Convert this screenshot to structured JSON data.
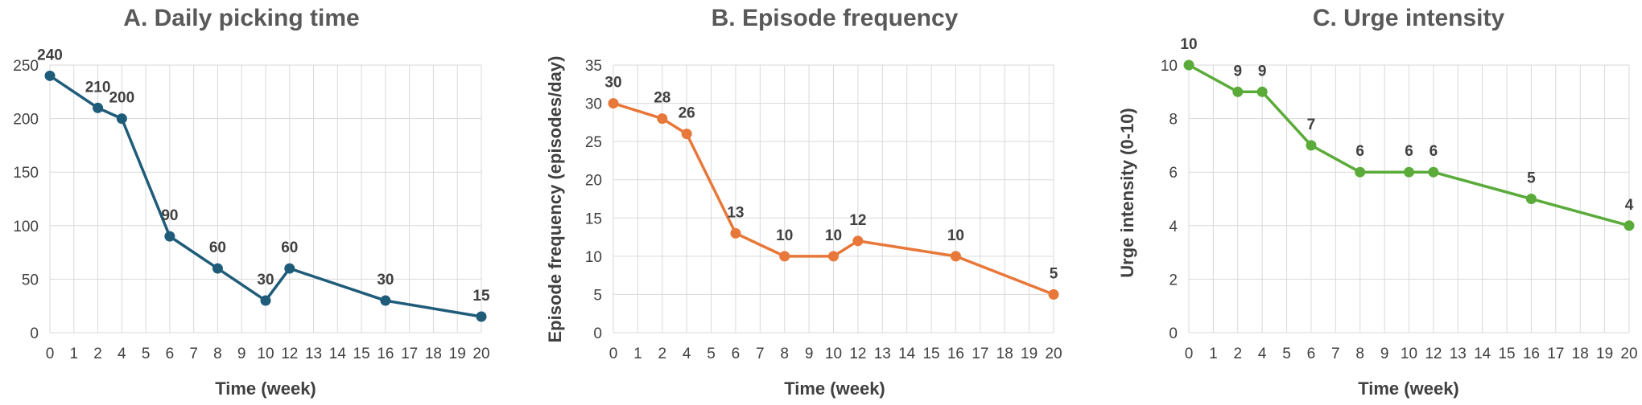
{
  "chart_data": [
    {
      "type": "line",
      "title": "A. Daily picking time",
      "xlabel": "Time (week)",
      "ylabel": "",
      "x_ticks": [
        "0",
        "1",
        "2",
        "4",
        "5",
        "6",
        "7",
        "8",
        "9",
        "10",
        "12",
        "13",
        "14",
        "15",
        "16",
        "17",
        "18",
        "19",
        "20"
      ],
      "ylim": [
        0,
        250
      ],
      "y_ticks": [
        "0",
        "50",
        "100",
        "150",
        "200",
        "250"
      ],
      "grid": true,
      "color": "#1f5c7a",
      "series": [
        {
          "x": [
            "0",
            "2",
            "4",
            "6",
            "8",
            "10",
            "12",
            "16",
            "20"
          ],
          "values": [
            240,
            210,
            200,
            90,
            60,
            30,
            60,
            30,
            15
          ]
        }
      ],
      "data_labels": [
        "240",
        "210",
        "200",
        "90",
        "60",
        "30",
        "60",
        "30",
        "15"
      ]
    },
    {
      "type": "line",
      "title": "B. Episode frequency",
      "xlabel": "Time (week)",
      "ylabel": "Episode frequency (episodes/day)",
      "x_ticks": [
        "0",
        "1",
        "2",
        "4",
        "5",
        "6",
        "7",
        "8",
        "9",
        "10",
        "12",
        "13",
        "14",
        "15",
        "16",
        "17",
        "18",
        "19",
        "20"
      ],
      "ylim": [
        0,
        35
      ],
      "y_ticks": [
        "0",
        "5",
        "10",
        "15",
        "20",
        "25",
        "30",
        "35"
      ],
      "grid": true,
      "color": "#e8773a",
      "series": [
        {
          "x": [
            "0",
            "2",
            "4",
            "6",
            "8",
            "10",
            "12",
            "16",
            "20"
          ],
          "values": [
            30,
            28,
            26,
            13,
            10,
            10,
            12,
            10,
            5
          ]
        }
      ],
      "data_labels": [
        "30",
        "28",
        "26",
        "13",
        "10",
        "10",
        "12",
        "10",
        "5"
      ]
    },
    {
      "type": "line",
      "title": "C. Urge intensity",
      "xlabel": "Time (week)",
      "ylabel": "Urge intensity (0-10)",
      "x_ticks": [
        "0",
        "1",
        "2",
        "4",
        "5",
        "6",
        "7",
        "8",
        "9",
        "10",
        "12",
        "13",
        "14",
        "15",
        "16",
        "17",
        "18",
        "19",
        "20"
      ],
      "ylim": [
        0,
        10
      ],
      "y_ticks": [
        "0",
        "2",
        "4",
        "6",
        "8",
        "10"
      ],
      "grid": true,
      "color": "#5aab3a",
      "series": [
        {
          "x": [
            "0",
            "2",
            "4",
            "6",
            "8",
            "10",
            "12",
            "16",
            "20"
          ],
          "values": [
            10,
            9,
            9,
            7,
            6,
            6,
            6,
            5,
            4
          ]
        }
      ],
      "data_labels": [
        "10",
        "9",
        "9",
        "7",
        "6",
        "6",
        "6",
        "5",
        "4"
      ]
    }
  ]
}
